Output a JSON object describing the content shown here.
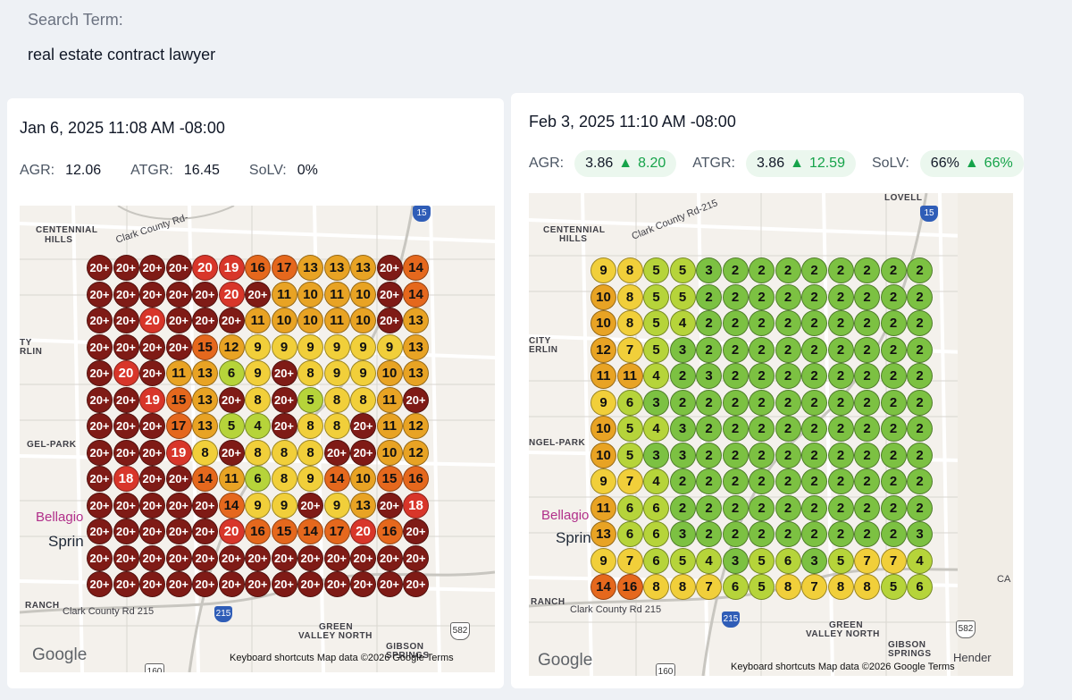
{
  "search": {
    "label": "Search Term:",
    "term": "real estate contract lawyer"
  },
  "colors": {
    "dark": "#7f1b16",
    "red": "#d8362a",
    "orange": "#e5681d",
    "amber": "#e8a324",
    "yellow": "#f1cf3a",
    "yellowgreen": "#b6d43a",
    "green": "#7cc142"
  },
  "panels": [
    {
      "date": "Jan 6, 2025 11:08 AM -08:00",
      "agr_label": "AGR:",
      "agr": "12.06",
      "atgr_label": "ATGR:",
      "atgr": "16.45",
      "solv_label": "SoLV:",
      "solv": "0%",
      "map": {
        "labels": [
          "CENTENNIAL",
          "HILLS",
          "Clark County Rd-",
          "TY",
          "RLIN",
          "GEL-PARK",
          "Bellagio",
          "Sprin",
          "RANCH",
          "Clark County Rd 215",
          "GREEN",
          "VALLEY NORTH",
          "GIBSON",
          "SPRINGS"
        ],
        "shields": [
          "15",
          "215",
          "582",
          "160"
        ],
        "google": "Google",
        "attribution": "Keyboard shortcuts    Map data ©2026 Google  Terms"
      },
      "grid": [
        [
          "20+",
          "20+",
          "20+",
          "20+",
          "20",
          "19",
          "16",
          "17",
          "13",
          "13",
          "13",
          "20+",
          "14"
        ],
        [
          "20+",
          "20+",
          "20+",
          "20+",
          "20+",
          "20",
          "20+",
          "11",
          "10",
          "11",
          "10",
          "20+",
          "14"
        ],
        [
          "20+",
          "20+",
          "20",
          "20+",
          "20+",
          "20+",
          "11",
          "10",
          "10",
          "11",
          "10",
          "20+",
          "13"
        ],
        [
          "20+",
          "20+",
          "20+",
          "20+",
          "15",
          "12",
          "9",
          "9",
          "9",
          "9",
          "9",
          "9",
          "13"
        ],
        [
          "20+",
          "20",
          "20+",
          "11",
          "13",
          "6",
          "9",
          "20+",
          "8",
          "9",
          "9",
          "10",
          "13"
        ],
        [
          "20+",
          "20+",
          "19",
          "15",
          "13",
          "20+",
          "8",
          "20+",
          "5",
          "8",
          "8",
          "11",
          "20+"
        ],
        [
          "20+",
          "20+",
          "20+",
          "17",
          "13",
          "5",
          "4",
          "20+",
          "8",
          "8",
          "20+",
          "11",
          "12"
        ],
        [
          "20+",
          "20+",
          "20+",
          "19",
          "8",
          "20+",
          "8",
          "8",
          "8",
          "20+",
          "20+",
          "10",
          "12"
        ],
        [
          "20+",
          "18",
          "20+",
          "20+",
          "14",
          "11",
          "6",
          "8",
          "9",
          "14",
          "10",
          "15",
          "16"
        ],
        [
          "20+",
          "20+",
          "20+",
          "20+",
          "20+",
          "14",
          "9",
          "9",
          "20+",
          "9",
          "13",
          "20+",
          "18"
        ],
        [
          "20+",
          "20+",
          "20+",
          "20+",
          "20+",
          "20",
          "16",
          "15",
          "14",
          "17",
          "20",
          "16",
          "20+"
        ],
        [
          "20+",
          "20+",
          "20+",
          "20+",
          "20+",
          "20+",
          "20+",
          "20+",
          "20+",
          "20+",
          "20+",
          "20+",
          "20+"
        ],
        [
          "20+",
          "20+",
          "20+",
          "20+",
          "20+",
          "20+",
          "20+",
          "20+",
          "20+",
          "20+",
          "20+",
          "20+",
          "20+"
        ]
      ]
    },
    {
      "date": "Feb 3, 2025 11:10 AM -08:00",
      "agr_label": "AGR:",
      "agr": "3.86",
      "agr_delta": "8.20",
      "atgr_label": "ATGR:",
      "atgr": "3.86",
      "atgr_delta": "12.59",
      "solv_label": "SoLV:",
      "solv": "66%",
      "solv_delta": "66%",
      "map": {
        "labels": [
          "CENTENNIAL",
          "HILLS",
          "Clark County Rd-215",
          "CITY",
          "ERLIN",
          "NGEL-PARK",
          "Bellagio",
          "Sprin",
          "RANCH",
          "Clark County Rd 215",
          "GREEN",
          "VALLEY NORTH",
          "GIBSON",
          "SPRINGS",
          "LOVELL",
          "Hender",
          "CA"
        ],
        "shields": [
          "15",
          "215",
          "582",
          "160"
        ],
        "google": "Google",
        "attribution": "Keyboard shortcuts    Map data ©2026 Google   Terms"
      },
      "grid": [
        [
          "9",
          "8",
          "5",
          "5",
          "3",
          "2",
          "2",
          "2",
          "2",
          "2",
          "2",
          "2",
          "2"
        ],
        [
          "10",
          "8",
          "5",
          "5",
          "2",
          "2",
          "2",
          "2",
          "2",
          "2",
          "2",
          "2",
          "2"
        ],
        [
          "10",
          "8",
          "5",
          "4",
          "2",
          "2",
          "2",
          "2",
          "2",
          "2",
          "2",
          "2",
          "2"
        ],
        [
          "12",
          "7",
          "5",
          "3",
          "2",
          "2",
          "2",
          "2",
          "2",
          "2",
          "2",
          "2",
          "2"
        ],
        [
          "11",
          "11",
          "4",
          "2",
          "3",
          "2",
          "2",
          "2",
          "2",
          "2",
          "2",
          "2",
          "2"
        ],
        [
          "9",
          "6",
          "3",
          "2",
          "2",
          "2",
          "2",
          "2",
          "2",
          "2",
          "2",
          "2",
          "2"
        ],
        [
          "10",
          "5",
          "4",
          "3",
          "2",
          "2",
          "2",
          "2",
          "2",
          "2",
          "2",
          "2",
          "2"
        ],
        [
          "10",
          "5",
          "3",
          "3",
          "2",
          "2",
          "2",
          "2",
          "2",
          "2",
          "2",
          "2",
          "2"
        ],
        [
          "9",
          "7",
          "4",
          "2",
          "2",
          "2",
          "2",
          "2",
          "2",
          "2",
          "2",
          "2",
          "2"
        ],
        [
          "11",
          "6",
          "6",
          "2",
          "2",
          "2",
          "2",
          "2",
          "2",
          "2",
          "2",
          "2",
          "2"
        ],
        [
          "13",
          "6",
          "6",
          "3",
          "2",
          "2",
          "2",
          "2",
          "2",
          "2",
          "2",
          "2",
          "3"
        ],
        [
          "9",
          "7",
          "6",
          "5",
          "4",
          "3",
          "5",
          "6",
          "3",
          "5",
          "7",
          "7",
          "4"
        ],
        [
          "14",
          "16",
          "8",
          "8",
          "7",
          "6",
          "5",
          "8",
          "7",
          "8",
          "8",
          "5",
          "6"
        ]
      ]
    }
  ]
}
